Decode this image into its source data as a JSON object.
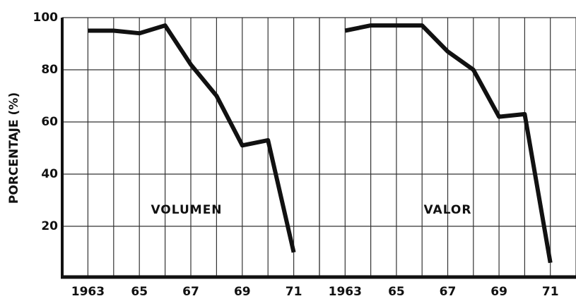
{
  "chart_data": [
    {
      "type": "line",
      "ylabel": "PORCENTAJE (%)",
      "annotation": "VOLUMEN",
      "x": [
        1963,
        1964,
        1965,
        1966,
        1967,
        1968,
        1969,
        1970,
        1971
      ],
      "values": [
        95,
        95,
        94,
        97,
        82,
        70,
        51,
        53,
        10
      ],
      "color": "#111111",
      "xlim": [
        1962,
        1972
      ],
      "ylim": [
        0,
        100
      ],
      "xticks": [
        1963,
        {
          "value": 1965,
          "label": "65"
        },
        {
          "value": 1967,
          "label": "67"
        },
        {
          "value": 1969,
          "label": "69"
        },
        {
          "value": 1971,
          "label": "71"
        }
      ],
      "yticks": [
        20,
        40,
        60,
        80,
        100
      ],
      "grid": true
    },
    {
      "type": "line",
      "annotation": "VALOR",
      "x": [
        1963,
        1964,
        1965,
        1966,
        1967,
        1968,
        1969,
        1970,
        1971
      ],
      "values": [
        95,
        97,
        97,
        97,
        87,
        80,
        62,
        63,
        6
      ],
      "color": "#111111",
      "xlim": [
        1962,
        1972
      ],
      "ylim": [
        0,
        100
      ],
      "xticks": [
        1963,
        {
          "value": 1965,
          "label": "65"
        },
        {
          "value": 1967,
          "label": "67"
        },
        {
          "value": 1969,
          "label": "69"
        },
        {
          "value": 1971,
          "label": "71"
        }
      ],
      "yticks": [
        20,
        40,
        60,
        80,
        100
      ],
      "grid": true
    }
  ]
}
